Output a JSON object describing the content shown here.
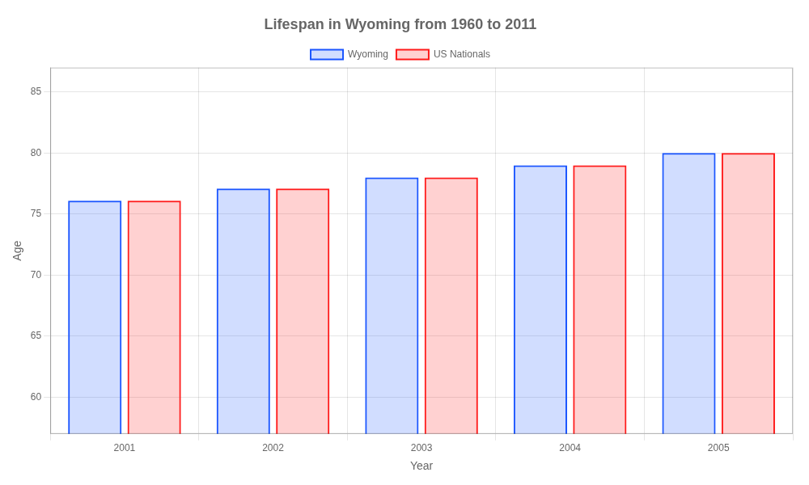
{
  "chart_data": {
    "type": "bar",
    "title": "Lifespan in Wyoming from 1960 to 2011",
    "x_label": "Year",
    "y_label": "Age",
    "categories": [
      "2001",
      "2002",
      "2003",
      "2004",
      "2005"
    ],
    "series": [
      {
        "name": "Wyoming",
        "color": "#1a55ff",
        "values": [
          76.1,
          77.1,
          78.0,
          79.0,
          80.0
        ]
      },
      {
        "name": "US Nationals",
        "color": "#ff1a1a",
        "values": [
          76.1,
          77.1,
          78.0,
          79.0,
          80.0
        ]
      }
    ],
    "ylim": [
      57,
      87
    ],
    "yticks": [
      60,
      65,
      70,
      75,
      80,
      85
    ],
    "grid": true,
    "legend": "top"
  }
}
